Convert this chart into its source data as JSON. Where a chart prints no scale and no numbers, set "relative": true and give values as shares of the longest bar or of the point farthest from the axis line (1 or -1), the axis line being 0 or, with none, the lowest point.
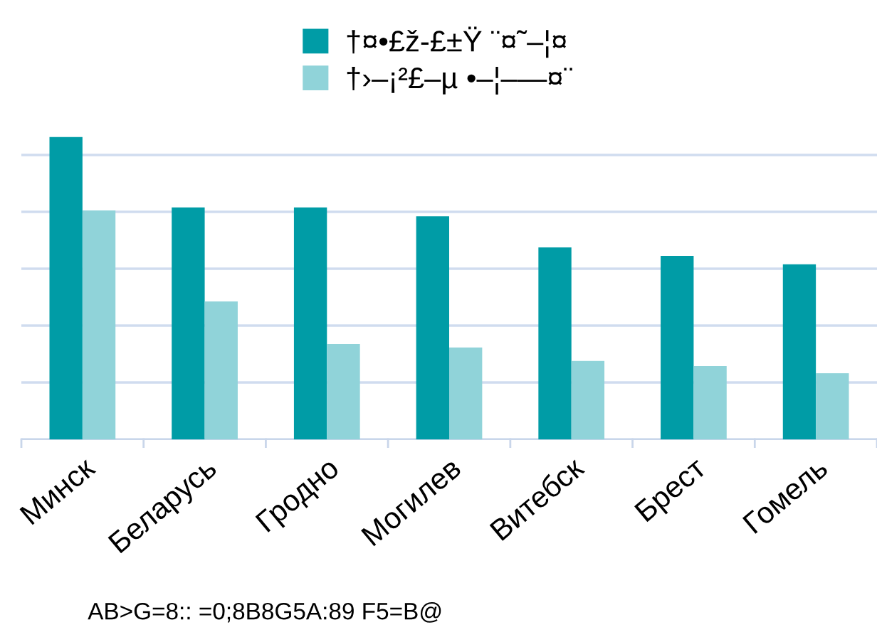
{
  "chart_data": {
    "type": "bar",
    "relative": true,
    "categories": [
      "Минск",
      "Беларусь",
      "Гродно",
      "Могилев",
      "Витебск",
      "Брест",
      "Гомель"
    ],
    "series": [
      {
        "name": "†¤•£ž-£±Ÿ ¨¤˜–¦¤",
        "color": "#009ca6",
        "values": [
          1,
          0.767,
          0.767,
          0.738,
          0.635,
          0.607,
          0.579
        ]
      },
      {
        "name": "†›–¡²£–µ •–¦–—¤¨",
        "color": "#90d3d9",
        "values": [
          0.757,
          0.456,
          0.315,
          0.304,
          0.259,
          0.242,
          0.219
        ]
      }
    ],
    "grid": "y",
    "legend": "top",
    "annotations": [
      "AB>G=8:: =0;8B8G5A:89 F5=B@"
    ]
  }
}
